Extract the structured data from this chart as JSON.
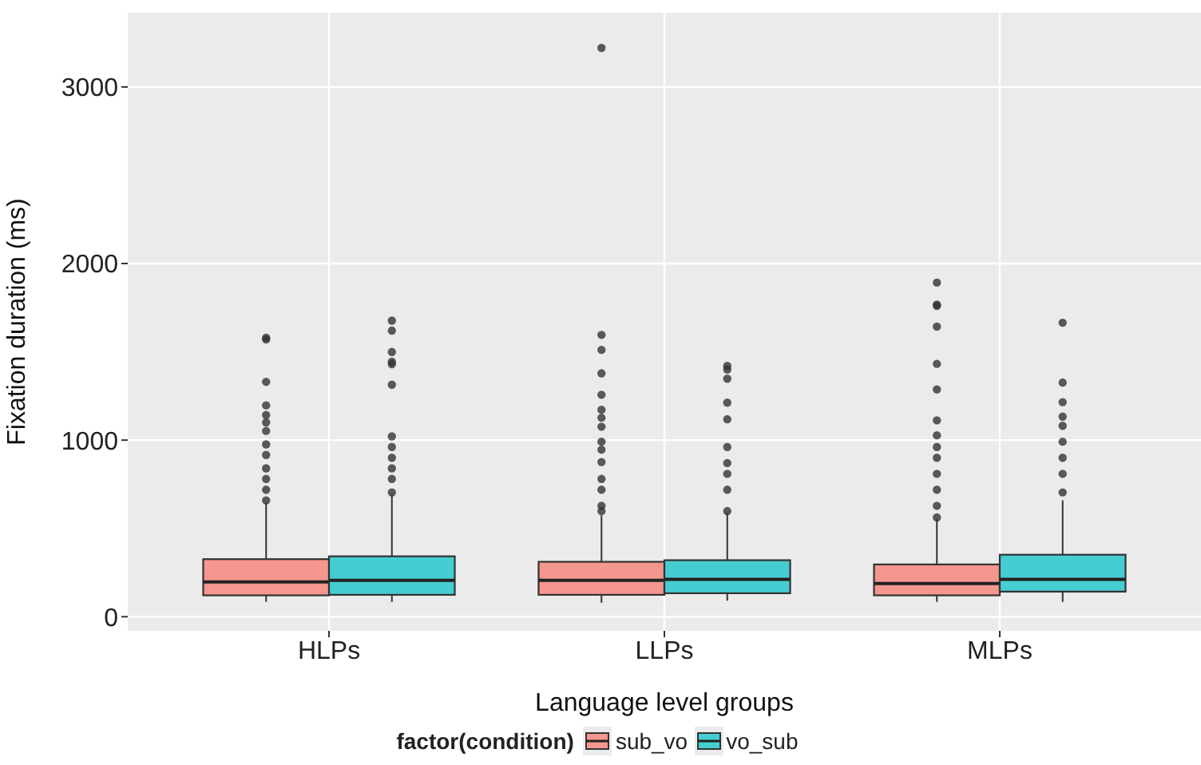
{
  "chart_data": {
    "type": "box",
    "xlabel": "Language level groups",
    "ylabel": "Fixation duration (ms)",
    "legend_title": "factor(condition)",
    "legend": "bottom",
    "grid": true,
    "categories": [
      "HLPs",
      "LLPs",
      "MLPs"
    ],
    "ylim": [
      -80,
      3420
    ],
    "yticks": [
      0,
      1000,
      2000,
      3000
    ],
    "series": [
      {
        "name": "sub_vo",
        "color": "#f5968f",
        "boxes": [
          {
            "low": 84,
            "q1": 121,
            "median": 197,
            "q3": 326,
            "high": 644,
            "outliers": [
              1580,
              1570,
              1330,
              1197,
              1142,
              1100,
              1052,
              976,
              916,
              840,
              780,
              719,
              659
            ]
          },
          {
            "low": 79,
            "q1": 124,
            "median": 206,
            "q3": 311,
            "high": 574,
            "outliers": [
              3221,
              1596,
              1511,
              1378,
              1257,
              1172,
              1127,
              1076,
              991,
              946,
              876,
              780,
              719,
              628,
              598
            ]
          },
          {
            "low": 84,
            "q1": 121,
            "median": 188,
            "q3": 296,
            "high": 553,
            "outliers": [
              1892,
              1767,
              1760,
              1643,
              1432,
              1287,
              1112,
              1027,
              961,
              900,
              809,
              719,
              628,
              562
            ]
          }
        ]
      },
      {
        "name": "vo_sub",
        "color": "#45cdd2",
        "boxes": [
          {
            "low": 84,
            "q1": 124,
            "median": 206,
            "q3": 342,
            "high": 689,
            "outliers": [
              1677,
              1620,
              1499,
              1444,
              1430,
              1314,
              1021,
              961,
              900,
              840,
              780,
              704
            ]
          },
          {
            "low": 91,
            "q1": 133,
            "median": 212,
            "q3": 320,
            "high": 589,
            "outliers": [
              1420,
              1400,
              1348,
              1212,
              1118,
              961,
              870,
              809,
              719,
              598
            ]
          },
          {
            "low": 84,
            "q1": 142,
            "median": 212,
            "q3": 351,
            "high": 659,
            "outliers": [
              1665,
              1326,
              1215,
              1133,
              1081,
              991,
              900,
              809,
              704
            ]
          }
        ]
      }
    ]
  }
}
